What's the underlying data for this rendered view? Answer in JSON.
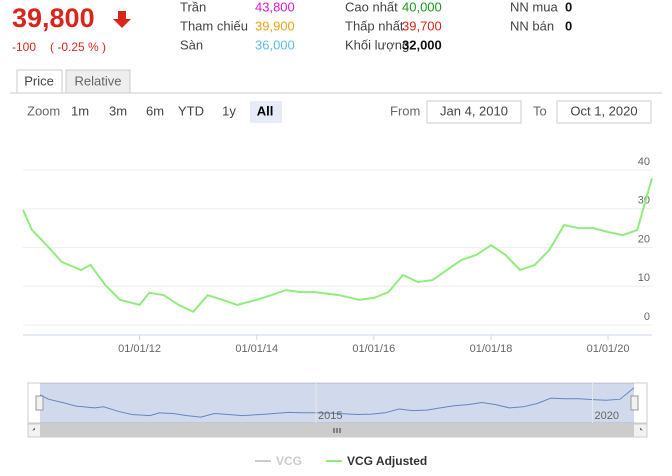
{
  "header": {
    "price": "39,800",
    "change": "-100",
    "change_pct": "( -0.25 % )",
    "stats": [
      {
        "label": "Trần",
        "value": "43,800",
        "color": "#d61ad6"
      },
      {
        "label": "Tham chiếu",
        "value": "39,900",
        "color": "#e8a317"
      },
      {
        "label": "Sàn",
        "value": "36,000",
        "color": "#5bc0de"
      },
      {
        "label": "Cao nhất",
        "value": "40,000",
        "color": "#1a9a1a"
      },
      {
        "label": "Thấp nhất",
        "value": "39,700",
        "color": "#d9261c"
      },
      {
        "label": "Khối lượng",
        "value": "32,000",
        "color": "#111111"
      },
      {
        "label": "NN mua",
        "value": "0",
        "color": "#111111"
      },
      {
        "label": "NN bán",
        "value": "0",
        "color": "#111111"
      }
    ]
  },
  "tabs": [
    "Price",
    "Relative"
  ],
  "zoom": {
    "label": "Zoom",
    "buttons": [
      "1m",
      "3m",
      "6m",
      "YTD",
      "1y",
      "All"
    ],
    "active": "All"
  },
  "range": {
    "from_label": "From",
    "from": "Jan 4, 2010",
    "to_label": "To",
    "to": "Oct 1, 2020"
  },
  "chart_data": {
    "type": "line",
    "x": [
      "2010-01-04",
      "2010-03-01",
      "2010-06-01",
      "2010-09-01",
      "2011-01-01",
      "2011-03-01",
      "2011-06-01",
      "2011-09-01",
      "2012-01-01",
      "2012-03-01",
      "2012-06-01",
      "2012-09-01",
      "2012-12-01",
      "2013-03-01",
      "2013-06-01",
      "2013-09-01",
      "2014-01-01",
      "2014-04-01",
      "2014-07-01",
      "2014-10-01",
      "2015-01-01",
      "2015-06-01",
      "2015-10-01",
      "2016-01-01",
      "2016-04-01",
      "2016-07-01",
      "2016-10-01",
      "2017-01-01",
      "2017-04-01",
      "2017-07-01",
      "2017-10-01",
      "2018-01-01",
      "2018-04-01",
      "2018-07-01",
      "2018-10-01",
      "2019-01-01",
      "2019-04-01",
      "2019-07-01",
      "2019-10-01",
      "2020-01-01",
      "2020-04-01",
      "2020-07-01",
      "2020-10-01"
    ],
    "series": [
      {
        "name": "VCG",
        "color": "#cccccc",
        "visible": false
      },
      {
        "name": "VCG Adjusted",
        "color": "#90ed7d",
        "visible": true,
        "values": [
          29.7,
          24.5,
          20.6,
          16.3,
          14.2,
          15.5,
          10.3,
          6.5,
          5.2,
          8.3,
          7.7,
          5.2,
          3.4,
          7.7,
          6.5,
          5.2,
          6.5,
          7.7,
          9.0,
          8.5,
          8.5,
          7.7,
          6.5,
          7.0,
          8.5,
          12.9,
          11.1,
          11.6,
          14.2,
          16.8,
          18.1,
          20.6,
          18.1,
          14.2,
          15.5,
          19.4,
          25.8,
          25.0,
          25.0,
          24.0,
          23.2,
          24.5,
          37.9
        ]
      }
    ],
    "xlim": [
      "2010-01-04",
      "2020-10-01"
    ],
    "xticks": [
      {
        "value": "2012-01-01",
        "label": "01/01/12"
      },
      {
        "value": "2014-01-01",
        "label": "01/01/14"
      },
      {
        "value": "2016-01-01",
        "label": "01/01/16"
      },
      {
        "value": "2018-01-01",
        "label": "01/01/18"
      },
      {
        "value": "2020-01-01",
        "label": "01/01/20"
      }
    ],
    "ylim": [
      0,
      40
    ],
    "yticks": [
      0,
      10,
      20,
      30,
      40
    ],
    "grid": true,
    "navigator_xticks": [
      {
        "value": "2015-01-01",
        "label": "2015"
      },
      {
        "value": "2020-01-01",
        "label": "2020"
      }
    ]
  }
}
